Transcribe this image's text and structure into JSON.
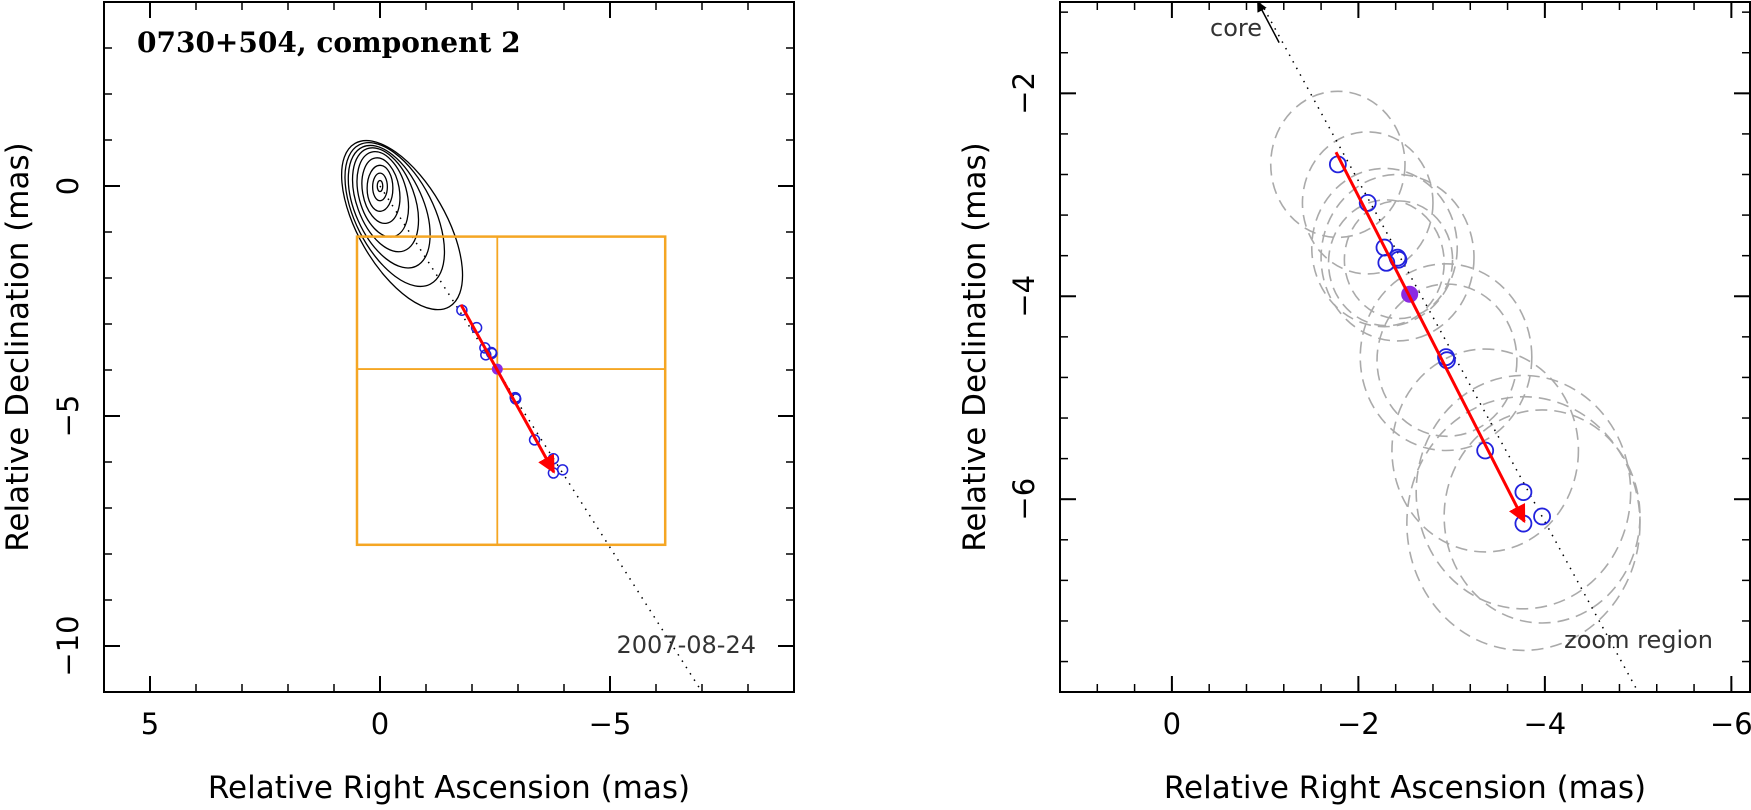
{
  "chart_data": [
    {
      "type": "scatter",
      "panel": "left",
      "title": "0730+504, component 2",
      "xlabel": "Relative Right Ascension (mas)",
      "ylabel": "Relative Declination (mas)",
      "xlim": [
        6.0,
        -9.0
      ],
      "ylim": [
        -11.0,
        4.0
      ],
      "xticks": [
        5,
        0,
        -5
      ],
      "xtick_labels": [
        "5",
        "0",
        "−5"
      ],
      "yticks": [
        0,
        -5,
        -10
      ],
      "ytick_labels": [
        "0",
        "−5",
        "−10"
      ],
      "epoch_label": "2007-08-24",
      "colors": {
        "motion_vector": "#ff0000",
        "component": "#2222dd",
        "reference": "#8a2be2",
        "zoom_box": "#f5a623",
        "contours": "#000000"
      },
      "contours": [
        {
          "x": 0.0,
          "y": 0.0,
          "rx": 0.06,
          "ry": 0.12,
          "angle": 0
        },
        {
          "x": 0.0,
          "y": -0.02,
          "rx": 0.16,
          "ry": 0.3,
          "angle": 0
        },
        {
          "x": 0.0,
          "y": -0.05,
          "rx": 0.28,
          "ry": 0.5,
          "angle": 0
        },
        {
          "x": -0.02,
          "y": -0.1,
          "rx": 0.4,
          "ry": 0.72,
          "angle": 10
        },
        {
          "x": -0.06,
          "y": -0.18,
          "rx": 0.52,
          "ry": 0.95,
          "angle": 15
        },
        {
          "x": -0.12,
          "y": -0.3,
          "rx": 0.63,
          "ry": 1.18,
          "angle": 20
        },
        {
          "x": -0.2,
          "y": -0.45,
          "rx": 0.74,
          "ry": 1.42,
          "angle": 24
        },
        {
          "x": -0.32,
          "y": -0.62,
          "rx": 0.85,
          "ry": 1.7,
          "angle": 27
        },
        {
          "x": -0.48,
          "y": -0.85,
          "rx": 0.95,
          "ry": 2.05,
          "angle": 30
        }
      ],
      "zoom_box": {
        "x_range": [
          0.5,
          -6.2
        ],
        "y_range": [
          -1.1,
          -7.8
        ],
        "center": [
          -2.55,
          -3.98
        ]
      },
      "components": [
        {
          "x": -1.78,
          "y": -2.7
        },
        {
          "x": -2.1,
          "y": -3.08
        },
        {
          "x": -2.28,
          "y": -3.52
        },
        {
          "x": -2.3,
          "y": -3.67
        },
        {
          "x": -2.42,
          "y": -3.62
        },
        {
          "x": -2.43,
          "y": -3.64
        },
        {
          "x": -2.94,
          "y": -4.6
        },
        {
          "x": -2.95,
          "y": -4.63
        },
        {
          "x": -3.36,
          "y": -5.52
        },
        {
          "x": -3.77,
          "y": -5.93
        },
        {
          "x": -3.77,
          "y": -6.24
        },
        {
          "x": -3.97,
          "y": -6.17
        }
      ],
      "reference_point": {
        "x": -2.55,
        "y": -3.98
      },
      "motion_vector": {
        "from": [
          -1.76,
          -2.58
        ],
        "to": [
          -3.78,
          -6.22
        ]
      },
      "jet_axis": {
        "from": [
          0.0,
          0.0
        ],
        "to": [
          -7.0,
          -11.0
        ]
      }
    },
    {
      "type": "scatter",
      "panel": "right",
      "title": "",
      "xlabel": "Relative Right Ascension (mas)",
      "ylabel": "Relative Declination (mas)",
      "xlim": [
        1.2,
        -6.2
      ],
      "ylim": [
        -7.9,
        -1.1
      ],
      "xticks": [
        0,
        -2,
        -4,
        -6
      ],
      "xtick_labels": [
        "0",
        "−2",
        "−4",
        "−6"
      ],
      "yticks": [
        -2,
        -4,
        -6
      ],
      "ytick_labels": [
        "−2",
        "−4",
        "−6"
      ],
      "core_label": "core",
      "zoom_label": "zoom region",
      "colors": {
        "motion_vector": "#ff0000",
        "component": "#2222dd",
        "reference": "#8a2be2",
        "beam_circles": "#aaaaaa"
      },
      "components": [
        {
          "x": -1.78,
          "y": -2.7
        },
        {
          "x": -2.1,
          "y": -3.08
        },
        {
          "x": -2.28,
          "y": -3.52
        },
        {
          "x": -2.3,
          "y": -3.67
        },
        {
          "x": -2.42,
          "y": -3.62
        },
        {
          "x": -2.43,
          "y": -3.64
        },
        {
          "x": -2.94,
          "y": -4.6
        },
        {
          "x": -2.95,
          "y": -4.63
        },
        {
          "x": -3.36,
          "y": -5.52
        },
        {
          "x": -3.77,
          "y": -5.93
        },
        {
          "x": -3.77,
          "y": -6.24
        },
        {
          "x": -3.97,
          "y": -6.17
        }
      ],
      "component_sizes": [
        {
          "x": -1.78,
          "y": -2.7,
          "r": 0.72
        },
        {
          "x": -2.1,
          "y": -3.08,
          "r": 0.7
        },
        {
          "x": -2.28,
          "y": -3.52,
          "r": 0.78
        },
        {
          "x": -2.3,
          "y": -3.67,
          "r": 0.62
        },
        {
          "x": -2.42,
          "y": -3.62,
          "r": 0.82
        },
        {
          "x": -2.43,
          "y": -3.64,
          "r": 0.58
        },
        {
          "x": -2.94,
          "y": -4.6,
          "r": 0.92
        },
        {
          "x": -2.95,
          "y": -4.63,
          "r": 0.75
        },
        {
          "x": -3.36,
          "y": -5.52,
          "r": 1.0
        },
        {
          "x": -3.77,
          "y": -5.93,
          "r": 1.15
        },
        {
          "x": -3.77,
          "y": -6.24,
          "r": 1.25
        },
        {
          "x": -3.97,
          "y": -6.17,
          "r": 1.05
        }
      ],
      "reference_point": {
        "x": -2.55,
        "y": -3.98
      },
      "motion_vector": {
        "from": [
          -1.76,
          -2.58
        ],
        "to": [
          -3.78,
          -6.22
        ]
      },
      "jet_axis": {
        "from": [
          -0.95,
          -1.1
        ],
        "to": [
          -5.0,
          -7.9
        ]
      },
      "core_arrow": {
        "from": [
          -1.15,
          -1.5
        ],
        "to": [
          -0.92,
          -1.1
        ]
      }
    }
  ]
}
